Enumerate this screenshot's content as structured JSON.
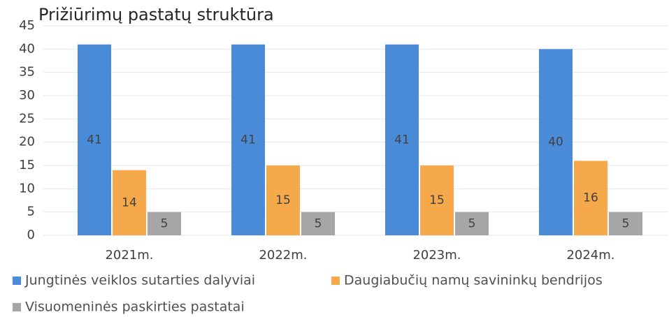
{
  "chart_data": {
    "type": "bar",
    "title": "Prižiūrimų pastatų struktūra",
    "categories": [
      "2021m.",
      "2022m.",
      "2023m.",
      "2024m."
    ],
    "series": [
      {
        "name": "Jungtinės veiklos sutarties dalyviai",
        "color": "#4a8bd8",
        "values": [
          41,
          41,
          41,
          40
        ]
      },
      {
        "name": "Daugiabučių namų savininkų bendrijos",
        "color": "#f5a94a",
        "values": [
          14,
          15,
          15,
          16
        ]
      },
      {
        "name": "Visuomeninės paskirties pastatai",
        "color": "#a6a6a6",
        "values": [
          5,
          5,
          5,
          5
        ]
      }
    ],
    "ylim": [
      0,
      45
    ],
    "yticks": [
      0,
      5,
      10,
      15,
      20,
      25,
      30,
      35,
      40,
      45
    ],
    "grid": true
  }
}
